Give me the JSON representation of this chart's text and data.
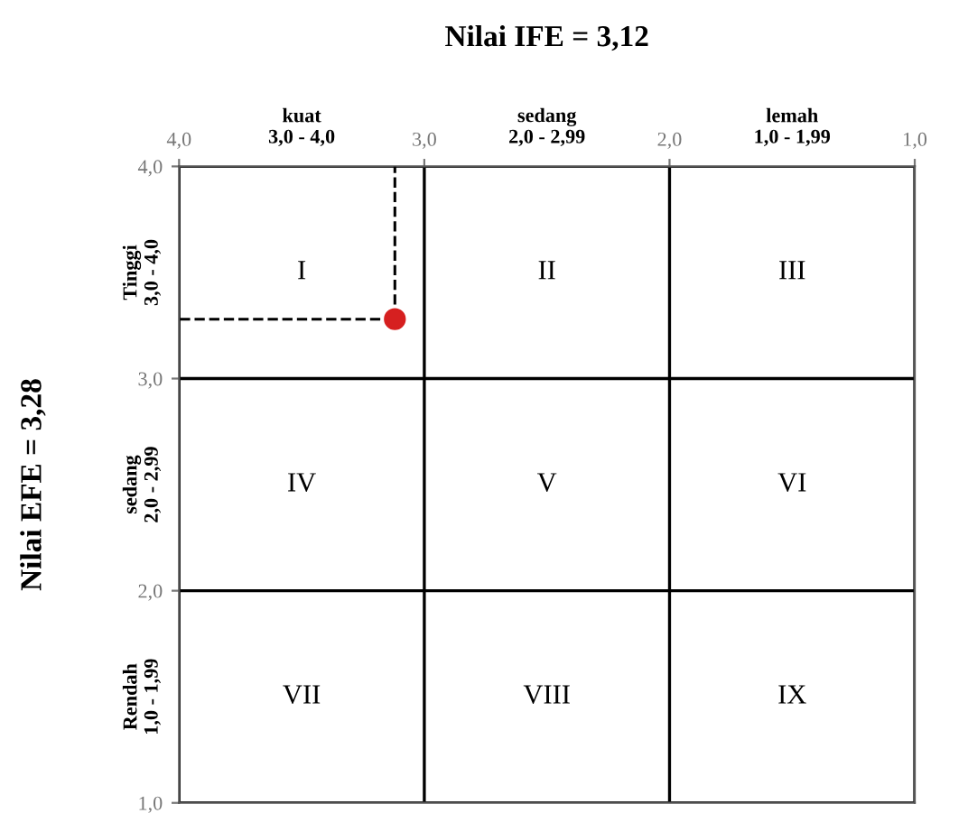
{
  "chart_data": {
    "type": "scatter",
    "title": "Nilai IFE = 3,12",
    "ylabel": "Nilai EFE = 3,28",
    "x": [
      3.12
    ],
    "values": [
      3.28
    ],
    "color": "#d62020",
    "marker": "circle",
    "errors": [
      [
        3.28,
        4.0
      ]
    ],
    "xerrors": [
      [
        3.12,
        4.0
      ]
    ],
    "line_style": "dashed",
    "grid": true,
    "xlim": [
      4.0,
      1.0
    ],
    "ylim": [
      1.0,
      4.0
    ],
    "xticks": [
      {
        "value": 4.0,
        "label": "4,0"
      },
      {
        "value": 3.0,
        "label": "3,0"
      },
      {
        "value": 2.0,
        "label": "2,0"
      },
      {
        "value": 1.0,
        "label": "1,0"
      }
    ],
    "yticks": [
      {
        "value": 4.0,
        "label": "4,0"
      },
      {
        "value": 3.0,
        "label": "3,0"
      },
      {
        "value": 2.0,
        "label": "2,0"
      },
      {
        "value": 1.0,
        "label": "1,0"
      }
    ],
    "annotations": [
      "I",
      "II",
      "III",
      "IV",
      "V",
      "VI",
      "VII",
      "VIII",
      "IX",
      "kuat\n3,0 - 4,0",
      "sedang\n2,0 - 2,99",
      "lemah\n1,0 - 1,99",
      "Tinggi\n3,0 - 4,0",
      "sedang\n2,0 - 2,99",
      "Rendah\n1,0 - 1,99"
    ]
  }
}
